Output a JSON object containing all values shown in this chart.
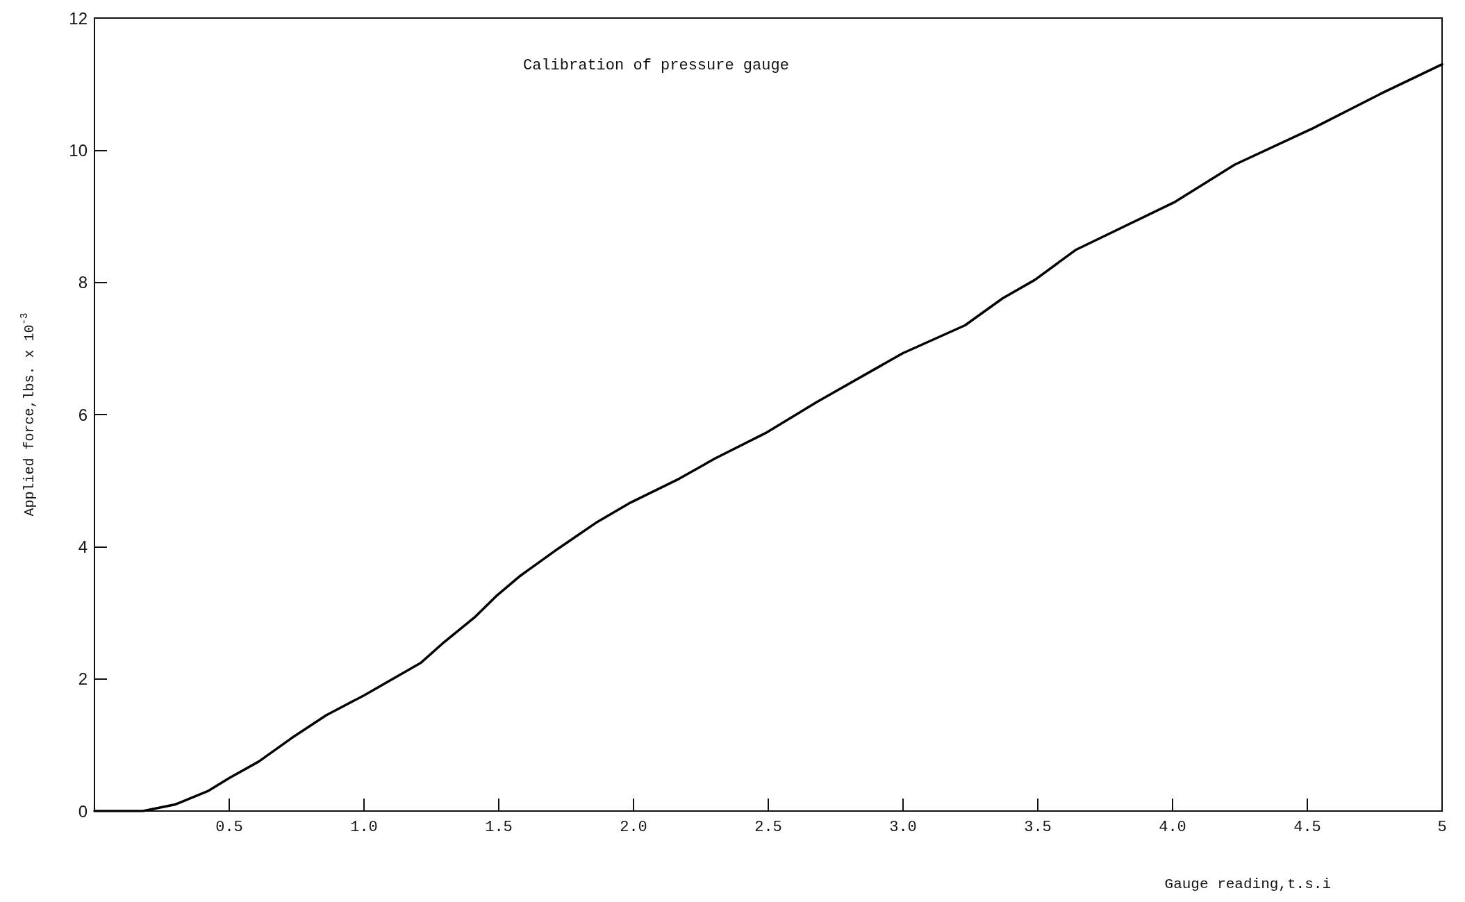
{
  "chart_data": {
    "type": "line",
    "title": "Calibration of pressure gauge",
    "xlabel": "Gauge reading,t.s.i",
    "ylabel": "Applied force,lbs. x 10$^{-3}$",
    "x": [
      0,
      0.18,
      0.3,
      0.42,
      0.5,
      0.61,
      0.73,
      0.86,
      1.0,
      1.21,
      1.29,
      1.41,
      1.49,
      1.58,
      1.72,
      1.86,
      1.99,
      2.17,
      2.3,
      2.49,
      2.68,
      3.0,
      3.23,
      3.37,
      3.49,
      3.64,
      4.01,
      4.23,
      4.52,
      4.77,
      5.0
    ],
    "series": [
      {
        "color": "#000000",
        "values": [
          0,
          0,
          0.1,
          0.3,
          0.5,
          0.75,
          1.1,
          1.45,
          1.75,
          2.24,
          2.53,
          2.93,
          3.25,
          3.56,
          3.97,
          4.36,
          4.67,
          5.03,
          5.33,
          5.72,
          6.19,
          6.93,
          7.35,
          7.76,
          8.04,
          8.49,
          9.22,
          9.78,
          10.33,
          10.85,
          11.3
        ]
      }
    ],
    "xlim": [
      0,
      5
    ],
    "xticks": [
      0.5,
      {
        "value": 1,
        "label": "1.0"
      },
      1.5,
      {
        "value": 2,
        "label": "2.0"
      },
      2.5,
      {
        "value": 3,
        "label": "3.0"
      },
      3.5,
      {
        "value": 4,
        "label": "4.0"
      },
      4.5,
      5
    ],
    "ylim": [
      0,
      12
    ],
    "yticks": [
      0,
      2,
      4,
      6,
      8,
      10,
      12
    ],
    "grid": false,
    "marker": "none",
    "line_style": "solid"
  }
}
